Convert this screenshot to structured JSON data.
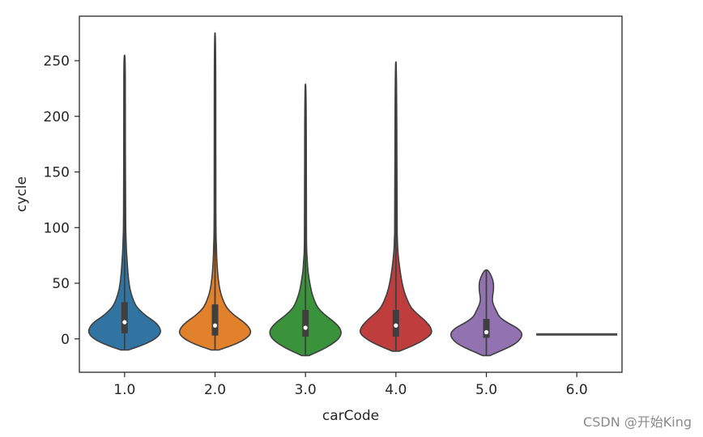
{
  "chart_data": {
    "type": "violin",
    "xlabel": "carCode",
    "ylabel": "cycle",
    "ylim": [
      -30,
      290
    ],
    "yticks": [
      0,
      50,
      100,
      150,
      200,
      250
    ],
    "categories": [
      "1.0",
      "2.0",
      "3.0",
      "4.0",
      "5.0",
      "6.0"
    ],
    "groups": [
      {
        "label": "1.0",
        "color": "#3274a1",
        "min": -10,
        "max": 255,
        "q1": 5,
        "median": 15,
        "q3": 33,
        "profile": [
          [
            -10,
            0.1
          ],
          [
            -5,
            0.55
          ],
          [
            0,
            0.85
          ],
          [
            5,
            1.0
          ],
          [
            10,
            0.98
          ],
          [
            15,
            0.85
          ],
          [
            20,
            0.62
          ],
          [
            25,
            0.44
          ],
          [
            30,
            0.3
          ],
          [
            40,
            0.18
          ],
          [
            50,
            0.12
          ],
          [
            60,
            0.09
          ],
          [
            70,
            0.07
          ],
          [
            80,
            0.05
          ],
          [
            90,
            0.04
          ],
          [
            100,
            0.03
          ],
          [
            130,
            0.025
          ],
          [
            200,
            0.02
          ],
          [
            255,
            0.02
          ]
        ]
      },
      {
        "label": "2.0",
        "color": "#e1812c",
        "min": -10,
        "max": 275,
        "q1": 3,
        "median": 12,
        "q3": 31,
        "profile": [
          [
            -10,
            0.1
          ],
          [
            -5,
            0.55
          ],
          [
            0,
            0.85
          ],
          [
            5,
            1.0
          ],
          [
            10,
            0.95
          ],
          [
            15,
            0.8
          ],
          [
            20,
            0.58
          ],
          [
            25,
            0.4
          ],
          [
            30,
            0.28
          ],
          [
            40,
            0.16
          ],
          [
            50,
            0.1
          ],
          [
            60,
            0.07
          ],
          [
            70,
            0.05
          ],
          [
            80,
            0.04
          ],
          [
            90,
            0.03
          ],
          [
            100,
            0.025
          ],
          [
            130,
            0.02
          ],
          [
            275,
            0.02
          ]
        ]
      },
      {
        "label": "3.0",
        "color": "#3a923a",
        "min": -15,
        "max": 229,
        "q1": 2,
        "median": 10,
        "q3": 26,
        "profile": [
          [
            -15,
            0.1
          ],
          [
            -10,
            0.45
          ],
          [
            -5,
            0.72
          ],
          [
            0,
            0.92
          ],
          [
            5,
            1.0
          ],
          [
            10,
            0.95
          ],
          [
            15,
            0.8
          ],
          [
            20,
            0.6
          ],
          [
            25,
            0.42
          ],
          [
            30,
            0.3
          ],
          [
            40,
            0.18
          ],
          [
            50,
            0.12
          ],
          [
            60,
            0.07
          ],
          [
            70,
            0.05
          ],
          [
            80,
            0.03
          ],
          [
            100,
            0.025
          ],
          [
            229,
            0.02
          ]
        ]
      },
      {
        "label": "4.0",
        "color": "#c03d3e",
        "min": -11,
        "max": 249,
        "q1": 2,
        "median": 12,
        "q3": 26,
        "profile": [
          [
            -11,
            0.1
          ],
          [
            -5,
            0.55
          ],
          [
            0,
            0.82
          ],
          [
            5,
            1.0
          ],
          [
            10,
            0.97
          ],
          [
            15,
            0.85
          ],
          [
            20,
            0.68
          ],
          [
            25,
            0.5
          ],
          [
            30,
            0.38
          ],
          [
            40,
            0.25
          ],
          [
            50,
            0.17
          ],
          [
            60,
            0.12
          ],
          [
            70,
            0.08
          ],
          [
            80,
            0.05
          ],
          [
            90,
            0.04
          ],
          [
            100,
            0.03
          ],
          [
            249,
            0.02
          ]
        ]
      },
      {
        "label": "5.0",
        "color": "#9372b2",
        "min": -15,
        "max": 62,
        "q1": 1,
        "median": 6,
        "q3": 18,
        "profile": [
          [
            -15,
            0.1
          ],
          [
            -10,
            0.45
          ],
          [
            -5,
            0.78
          ],
          [
            0,
            0.95
          ],
          [
            5,
            1.0
          ],
          [
            10,
            0.85
          ],
          [
            15,
            0.55
          ],
          [
            20,
            0.35
          ],
          [
            25,
            0.28
          ],
          [
            30,
            0.2
          ],
          [
            35,
            0.16
          ],
          [
            40,
            0.18
          ],
          [
            45,
            0.2
          ],
          [
            50,
            0.2
          ],
          [
            55,
            0.16
          ],
          [
            60,
            0.08
          ],
          [
            62,
            0.03
          ]
        ]
      },
      {
        "label": "6.0",
        "color": "#845b53",
        "min": 4,
        "max": 4,
        "single_value": 4
      }
    ]
  },
  "watermark": "CSDN @开始King"
}
